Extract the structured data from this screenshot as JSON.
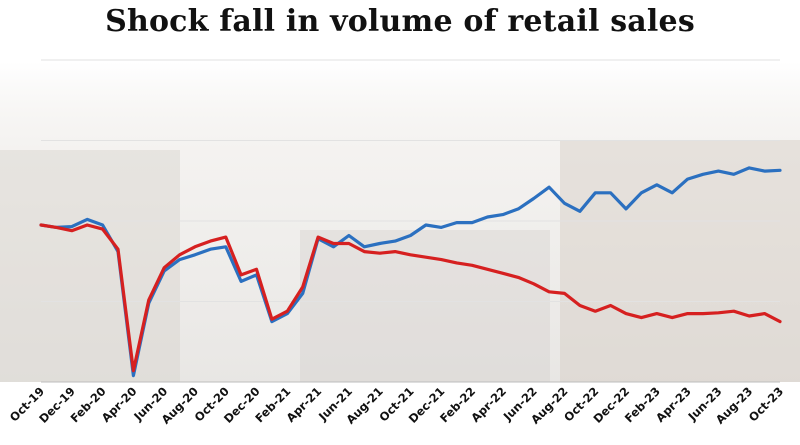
{
  "chart_data": {
    "type": "line",
    "title": "Shock fall in volume of retail sales",
    "xlabel": "",
    "ylabel": "",
    "grid": true,
    "x": [
      "Oct-19",
      "Nov-19",
      "Dec-19",
      "Jan-20",
      "Feb-20",
      "Mar-20",
      "Apr-20",
      "May-20",
      "Jun-20",
      "Jul-20",
      "Aug-20",
      "Sep-20",
      "Oct-20",
      "Nov-20",
      "Dec-20",
      "Jan-21",
      "Feb-21",
      "Mar-21",
      "Apr-21",
      "May-21",
      "Jun-21",
      "Jul-21",
      "Aug-21",
      "Sep-21",
      "Oct-21",
      "Nov-21",
      "Dec-21",
      "Jan-22",
      "Feb-22",
      "Mar-22",
      "Apr-22",
      "May-22",
      "Jun-22",
      "Jul-22",
      "Aug-22",
      "Sep-22",
      "Oct-22",
      "Nov-22",
      "Dec-22",
      "Jan-23",
      "Feb-23",
      "Mar-23",
      "Apr-23",
      "May-23",
      "Jun-23",
      "Jul-23",
      "Aug-23",
      "Sep-23",
      "Oct-23"
    ],
    "tick_labels": [
      "Oct-19",
      "Dec-19",
      "Feb-20",
      "Apr-20",
      "Jun-20",
      "Aug-20",
      "Oct-20",
      "Dec-20",
      "Feb-21",
      "Apr-21",
      "Jun-21",
      "Aug-21",
      "Oct-21",
      "Dec-21",
      "Feb-22",
      "Apr-22",
      "Jun-22",
      "Aug-22",
      "Oct-22",
      "Dec-22",
      "Feb-23",
      "Apr-23",
      "Jun-23",
      "Aug-23",
      "Oct-23"
    ],
    "ylim": [
      0,
      4
    ],
    "series": [
      {
        "color": "#2b70c0",
        "values": [
          1.95,
          1.92,
          1.93,
          2.02,
          1.95,
          1.62,
          0.08,
          0.98,
          1.38,
          1.52,
          1.58,
          1.65,
          1.68,
          1.25,
          1.33,
          0.75,
          0.85,
          1.1,
          1.78,
          1.68,
          1.82,
          1.68,
          1.72,
          1.75,
          1.82,
          1.95,
          1.92,
          1.98,
          1.98,
          2.05,
          2.08,
          2.15,
          2.28,
          2.42,
          2.22,
          2.12,
          2.35,
          2.35,
          2.15,
          2.35,
          2.45,
          2.35,
          2.52,
          2.58,
          2.62,
          2.58,
          2.66,
          2.62,
          2.63
        ]
      },
      {
        "color": "#d62020",
        "values": [
          1.95,
          1.92,
          1.88,
          1.95,
          1.9,
          1.65,
          0.14,
          1.02,
          1.42,
          1.58,
          1.68,
          1.75,
          1.8,
          1.33,
          1.4,
          0.78,
          0.88,
          1.18,
          1.8,
          1.72,
          1.72,
          1.62,
          1.6,
          1.62,
          1.58,
          1.55,
          1.52,
          1.48,
          1.45,
          1.4,
          1.35,
          1.3,
          1.22,
          1.12,
          1.1,
          0.95,
          0.88,
          0.95,
          0.85,
          0.8,
          0.85,
          0.8,
          0.85,
          0.85,
          0.86,
          0.88,
          0.82,
          0.85,
          0.75
        ]
      }
    ]
  }
}
